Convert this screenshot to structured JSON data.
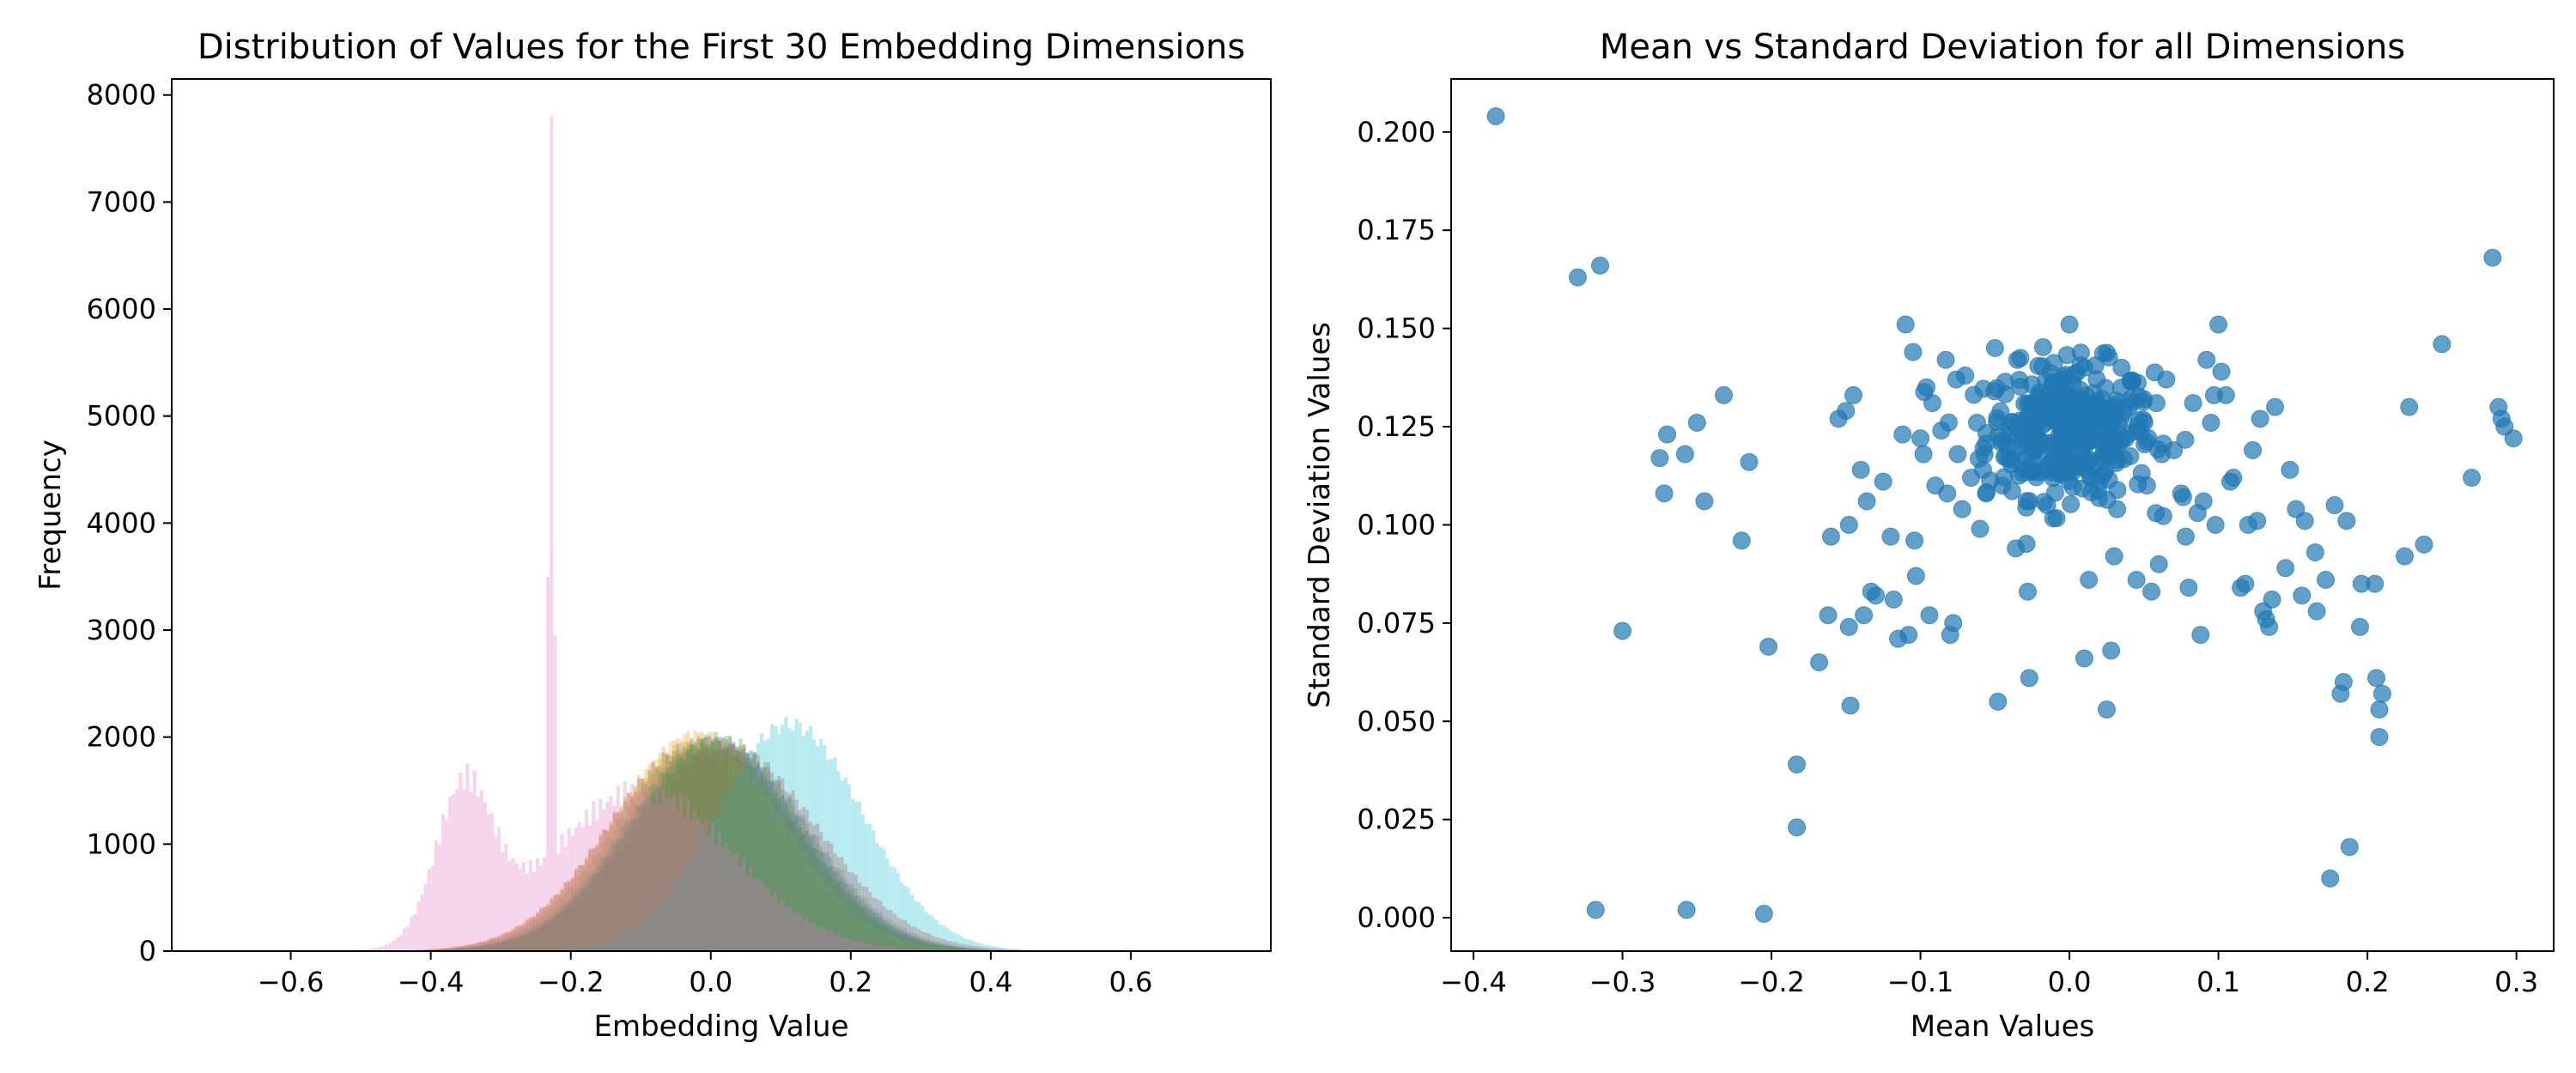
{
  "chart_data": [
    {
      "type": "histogram",
      "title": "Distribution of Values for the First 30 Embedding Dimensions",
      "xlabel": "Embedding Value",
      "ylabel": "Frequency",
      "xlim": [
        -0.77,
        0.8
      ],
      "ylim": [
        0,
        8150
      ],
      "xticks": [
        "−0.6",
        "−0.4",
        "−0.2",
        "0.0",
        "0.2",
        "0.4",
        "0.6"
      ],
      "xtick_values": [
        -0.6,
        -0.4,
        -0.2,
        0.0,
        0.2,
        0.4,
        0.6
      ],
      "yticks": [
        "0",
        "1000",
        "2000",
        "3000",
        "4000",
        "5000",
        "6000",
        "7000",
        "8000"
      ],
      "ytick_values": [
        0,
        1000,
        2000,
        3000,
        4000,
        5000,
        6000,
        7000,
        8000
      ],
      "grid": false,
      "series_count": 30,
      "distributions": [
        {
          "kind": "normal",
          "mean": 0.0,
          "std": 0.125,
          "peak": 1950,
          "color": "#1f77b4"
        },
        {
          "kind": "normal",
          "mean": -0.02,
          "std": 0.125,
          "peak": 2000,
          "color": "#ff7f0e"
        },
        {
          "kind": "normal",
          "mean": 0.01,
          "std": 0.12,
          "peak": 1980,
          "color": "#2ca02c"
        },
        {
          "kind": "normal",
          "mean": 0.02,
          "std": 0.13,
          "peak": 1900,
          "color": "#d62728"
        },
        {
          "kind": "normal",
          "mean": 0.0,
          "std": 0.12,
          "peak": 1950,
          "color": "#9467bd"
        },
        {
          "kind": "normal",
          "mean": -0.03,
          "std": 0.12,
          "peak": 1900,
          "color": "#8c564b"
        },
        {
          "kind": "normal",
          "mean": -0.01,
          "std": 0.125,
          "peak": 1960,
          "color": "#7f7f7f"
        },
        {
          "kind": "normal",
          "mean": -0.02,
          "std": 0.12,
          "peak": 2000,
          "color": "#bcbd22"
        },
        {
          "kind": "normal",
          "mean": 0.11,
          "std": 0.105,
          "peak": 2120,
          "color": "#17becf"
        },
        {
          "kind": "normal",
          "mean": 0.0,
          "std": 0.12,
          "peak": 1940,
          "color": "#2ca02c"
        },
        {
          "kind": "normal",
          "mean": 0.01,
          "std": 0.125,
          "peak": 1950,
          "color": "#7f7f7f"
        },
        {
          "kind": "pink",
          "color": "#e377c2",
          "bumps": [
            {
              "mean": -0.355,
              "std": 0.04,
              "peak": 1400
            },
            {
              "mean": -0.1,
              "std": 0.13,
              "peak": 1500
            }
          ],
          "spikes": [
            {
              "x": -0.228,
              "value": 7800
            },
            {
              "x": -0.233,
              "value": 3500
            },
            {
              "x": -0.223,
              "value": 2950
            }
          ]
        }
      ]
    },
    {
      "type": "scatter",
      "title": "Mean vs Standard Deviation for all Dimensions",
      "xlabel": "Mean Values",
      "ylabel": "Standard Deviation Values",
      "xlim": [
        -0.415,
        0.325
      ],
      "ylim": [
        -0.0085,
        0.2135
      ],
      "xticks": [
        "−0.4",
        "−0.3",
        "−0.2",
        "−0.1",
        "0.0",
        "0.1",
        "0.2",
        "0.3"
      ],
      "xtick_values": [
        -0.4,
        -0.3,
        -0.2,
        -0.1,
        0.0,
        0.1,
        0.2,
        0.3
      ],
      "yticks": [
        "0.000",
        "0.025",
        "0.050",
        "0.075",
        "0.100",
        "0.125",
        "0.150",
        "0.175",
        "0.200"
      ],
      "ytick_values": [
        0.0,
        0.025,
        0.05,
        0.075,
        0.1,
        0.125,
        0.15,
        0.175,
        0.2
      ],
      "grid": false,
      "point_color": "#1f77b4",
      "cluster": {
        "center": [
          0.0,
          0.124
        ],
        "spread": [
          0.028,
          0.0085
        ],
        "count": 330
      },
      "points": [
        [
          -0.385,
          0.204
        ],
        [
          -0.33,
          0.163
        ],
        [
          -0.315,
          0.166
        ],
        [
          -0.3,
          0.073
        ],
        [
          -0.318,
          0.002
        ],
        [
          -0.27,
          0.123
        ],
        [
          -0.272,
          0.108
        ],
        [
          -0.275,
          0.117
        ],
        [
          -0.258,
          0.118
        ],
        [
          -0.25,
          0.126
        ],
        [
          -0.245,
          0.106
        ],
        [
          -0.232,
          0.133
        ],
        [
          -0.257,
          0.002
        ],
        [
          -0.215,
          0.116
        ],
        [
          -0.22,
          0.096
        ],
        [
          -0.205,
          0.001
        ],
        [
          -0.202,
          0.069
        ],
        [
          -0.183,
          0.039
        ],
        [
          -0.183,
          0.023
        ],
        [
          -0.168,
          0.065
        ],
        [
          -0.162,
          0.077
        ],
        [
          -0.16,
          0.097
        ],
        [
          -0.155,
          0.127
        ],
        [
          -0.15,
          0.129
        ],
        [
          -0.148,
          0.1
        ],
        [
          -0.147,
          0.054
        ],
        [
          -0.145,
          0.133
        ],
        [
          -0.148,
          0.074
        ],
        [
          -0.14,
          0.114
        ],
        [
          -0.138,
          0.077
        ],
        [
          -0.136,
          0.106
        ],
        [
          -0.133,
          0.083
        ],
        [
          -0.13,
          0.082
        ],
        [
          -0.125,
          0.111
        ],
        [
          -0.12,
          0.097
        ],
        [
          -0.118,
          0.081
        ],
        [
          -0.115,
          0.071
        ],
        [
          -0.112,
          0.123
        ],
        [
          -0.11,
          0.151
        ],
        [
          -0.108,
          0.072
        ],
        [
          -0.105,
          0.144
        ],
        [
          -0.104,
          0.096
        ],
        [
          -0.103,
          0.087
        ],
        [
          -0.1,
          0.122
        ],
        [
          -0.098,
          0.118
        ],
        [
          -0.096,
          0.135
        ],
        [
          -0.094,
          0.077
        ],
        [
          -0.092,
          0.131
        ],
        [
          -0.09,
          0.11
        ],
        [
          -0.086,
          0.124
        ],
        [
          -0.083,
          0.142
        ],
        [
          -0.082,
          0.108
        ],
        [
          -0.08,
          0.072
        ],
        [
          -0.078,
          0.075
        ],
        [
          -0.076,
          0.137
        ],
        [
          -0.075,
          0.118
        ],
        [
          -0.072,
          0.104
        ],
        [
          -0.07,
          0.138
        ],
        [
          -0.066,
          0.112
        ],
        [
          -0.062,
          0.126
        ],
        [
          -0.06,
          0.099
        ],
        [
          -0.058,
          0.114
        ],
        [
          -0.056,
          0.108
        ],
        [
          -0.05,
          0.145
        ],
        [
          -0.048,
          0.055
        ],
        [
          -0.045,
          0.11
        ],
        [
          -0.04,
          0.125
        ],
        [
          -0.036,
          0.094
        ],
        [
          -0.03,
          0.114
        ],
        [
          -0.028,
          0.083
        ],
        [
          -0.027,
          0.061
        ],
        [
          -0.015,
          0.105
        ],
        [
          0.01,
          0.066
        ],
        [
          0.013,
          0.086
        ],
        [
          0.025,
          0.053
        ],
        [
          0.028,
          0.068
        ],
        [
          0.03,
          0.092
        ],
        [
          0.032,
          0.104
        ],
        [
          0.04,
          0.13
        ],
        [
          0.045,
          0.086
        ],
        [
          0.05,
          0.132
        ],
        [
          0.052,
          0.11
        ],
        [
          0.055,
          0.083
        ],
        [
          0.058,
          0.103
        ],
        [
          0.06,
          0.09
        ],
        [
          0.062,
          0.118
        ],
        [
          0.065,
          0.137
        ],
        [
          0.07,
          0.119
        ],
        [
          0.075,
          0.108
        ],
        [
          0.078,
          0.097
        ],
        [
          0.08,
          0.084
        ],
        [
          0.083,
          0.131
        ],
        [
          0.086,
          0.103
        ],
        [
          0.088,
          0.072
        ],
        [
          0.09,
          0.106
        ],
        [
          0.092,
          0.142
        ],
        [
          0.095,
          0.126
        ],
        [
          0.097,
          0.133
        ],
        [
          0.098,
          0.1
        ],
        [
          0.1,
          0.151
        ],
        [
          0.102,
          0.139
        ],
        [
          0.105,
          0.133
        ],
        [
          0.108,
          0.111
        ],
        [
          0.11,
          0.112
        ],
        [
          0.115,
          0.084
        ],
        [
          0.118,
          0.085
        ],
        [
          0.12,
          0.1
        ],
        [
          0.123,
          0.119
        ],
        [
          0.126,
          0.101
        ],
        [
          0.128,
          0.127
        ],
        [
          0.13,
          0.078
        ],
        [
          0.132,
          0.076
        ],
        [
          0.134,
          0.074
        ],
        [
          0.136,
          0.081
        ],
        [
          0.138,
          0.13
        ],
        [
          0.145,
          0.089
        ],
        [
          0.148,
          0.114
        ],
        [
          0.152,
          0.104
        ],
        [
          0.156,
          0.082
        ],
        [
          0.158,
          0.101
        ],
        [
          0.165,
          0.093
        ],
        [
          0.166,
          0.078
        ],
        [
          0.172,
          0.086
        ],
        [
          0.175,
          0.01
        ],
        [
          0.178,
          0.105
        ],
        [
          0.182,
          0.057
        ],
        [
          0.184,
          0.06
        ],
        [
          0.186,
          0.101
        ],
        [
          0.188,
          0.018
        ],
        [
          0.195,
          0.074
        ],
        [
          0.196,
          0.085
        ],
        [
          0.205,
          0.085
        ],
        [
          0.206,
          0.061
        ],
        [
          0.208,
          0.053
        ],
        [
          0.21,
          0.057
        ],
        [
          0.208,
          0.046
        ],
        [
          0.225,
          0.092
        ],
        [
          0.228,
          0.13
        ],
        [
          0.238,
          0.095
        ],
        [
          0.25,
          0.146
        ],
        [
          0.27,
          0.112
        ],
        [
          0.284,
          0.168
        ],
        [
          0.288,
          0.13
        ],
        [
          0.29,
          0.127
        ],
        [
          0.292,
          0.125
        ],
        [
          0.298,
          0.122
        ],
        [
          0.0,
          0.151
        ],
        [
          0.01,
          0.14
        ],
        [
          -0.035,
          0.142
        ],
        [
          0.035,
          0.14
        ]
      ]
    }
  ]
}
